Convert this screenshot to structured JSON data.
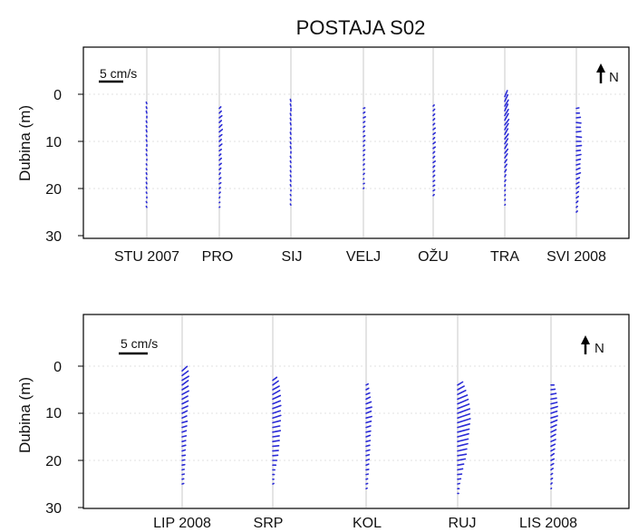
{
  "title": "POSTAJA S02",
  "colors": {
    "arrow": "#2a2ad6",
    "grid": "#c8c8c8",
    "frame": "#000000"
  },
  "north_label": "N",
  "north_icon": "north-arrow-icon",
  "scale_label": "5 cm/s",
  "chart_data": [
    {
      "type": "quiver",
      "ylabel": "Dubina (m)",
      "yticks": [
        "0",
        "10",
        "20",
        "30"
      ],
      "ylim": [
        -9,
        30
      ],
      "y_inverted": true,
      "scale_speed_cms": 5,
      "grid": "vertical lines at months, light",
      "month_labels": [
        "STU 2007",
        "PRO",
        "SIJ",
        "VELJ",
        "OŽU",
        "TRA",
        "SVI 2008"
      ],
      "series": [
        {
          "u": [
            0.1,
            0.1,
            0.1,
            0.0,
            0.1,
            0.1,
            0.1,
            0.1,
            0.1,
            0.0,
            0.1,
            0.1,
            0.0,
            0.1,
            0.1,
            0.1,
            0.1,
            0.1,
            0.1,
            0.1,
            0.0,
            0.1,
            0.1
          ],
          "v": [
            0.3,
            0.3,
            0.4,
            0.3,
            0.3,
            0.3,
            0.4,
            0.3,
            0.3,
            0.3,
            0.3,
            0.3,
            0.2,
            0.2,
            0.2,
            0.3,
            0.3,
            0.3,
            0.3,
            0.2,
            0.2,
            0.2,
            0.2
          ]
        },
        {
          "u": [
            -0.3,
            -0.4,
            -0.5,
            -0.4,
            -0.5,
            -0.6,
            -0.5,
            -0.4,
            -0.5,
            -0.4,
            -0.3,
            -0.4,
            -0.4,
            -0.3,
            -0.2,
            -0.3,
            -0.3,
            -0.2,
            -0.2,
            -0.1,
            -0.1,
            -0.1
          ],
          "v": [
            0.3,
            0.4,
            0.4,
            0.4,
            0.5,
            0.5,
            0.4,
            0.4,
            0.4,
            0.3,
            0.3,
            0.4,
            0.3,
            0.3,
            0.3,
            0.3,
            0.2,
            0.2,
            0.2,
            0.2,
            0.1,
            0.1
          ]
        },
        {
          "u": [
            0.1,
            0.1,
            0.0,
            0.1,
            0.1,
            0.1,
            0.0,
            0.1,
            0.1,
            0.1,
            0.1,
            0.0,
            0.1,
            0.1,
            0.1,
            0.1,
            0.1,
            0.1,
            0.1,
            0.0,
            0.1,
            0.1,
            0.1
          ],
          "v": [
            0.4,
            0.4,
            0.5,
            0.4,
            0.4,
            0.4,
            0.3,
            0.4,
            0.3,
            0.3,
            0.4,
            0.3,
            0.3,
            0.3,
            0.3,
            0.3,
            0.3,
            0.3,
            0.3,
            0.2,
            0.2,
            0.2,
            0.2
          ]
        },
        {
          "u": [
            -0.3,
            -0.3,
            -0.4,
            -0.3,
            -0.3,
            -0.2,
            -0.3,
            -0.3,
            -0.2,
            -0.3,
            -0.2,
            -0.2,
            -0.2,
            -0.2,
            -0.2,
            -0.1,
            -0.2,
            -0.1
          ],
          "v": [
            0.1,
            0.2,
            0.2,
            0.2,
            0.2,
            0.2,
            0.2,
            0.2,
            0.2,
            0.2,
            0.2,
            0.2,
            0.2,
            0.1,
            0.2,
            0.1,
            0.1,
            0.1
          ]
        },
        {
          "u": [
            -0.2,
            -0.3,
            -0.3,
            -0.3,
            -0.3,
            -0.4,
            -0.4,
            -0.3,
            -0.4,
            -0.4,
            -0.3,
            -0.3,
            -0.4,
            -0.3,
            -0.3,
            -0.3,
            -0.3,
            -0.3,
            -0.3,
            -0.2
          ],
          "v": [
            0.2,
            0.3,
            0.3,
            0.3,
            0.3,
            0.3,
            0.3,
            0.3,
            0.3,
            0.3,
            0.3,
            0.3,
            0.3,
            0.3,
            0.3,
            0.3,
            0.2,
            0.2,
            0.2,
            0.2
          ]
        },
        {
          "u": [
            -0.5,
            -0.6,
            -0.7,
            -0.6,
            -0.7,
            -0.7,
            -0.8,
            -0.7,
            -0.6,
            -0.7,
            -0.6,
            -0.5,
            -0.6,
            -0.5,
            -0.4,
            -0.4,
            -0.3,
            -0.2,
            -0.2,
            -0.1,
            -0.1,
            -0.1,
            -0.1,
            -0.1
          ],
          "v": [
            1.2,
            1.3,
            1.2,
            1.3,
            1.2,
            1.3,
            1.1,
            1.2,
            1.1,
            1.0,
            1.0,
            0.9,
            0.8,
            0.8,
            0.6,
            0.6,
            0.5,
            0.4,
            0.3,
            0.3,
            0.2,
            0.2,
            0.2,
            0.1
          ]
        },
        {
          "u": [
            -0.5,
            -0.6,
            -0.8,
            -0.9,
            -0.8,
            -0.9,
            -1.0,
            -0.9,
            -1.0,
            -0.8,
            -0.9,
            -0.8,
            -0.7,
            -0.7,
            -0.8,
            -0.6,
            -0.5,
            -0.5,
            -0.4,
            -0.4,
            -0.3,
            -0.2,
            -0.2
          ],
          "v": [
            0.1,
            0.0,
            0.1,
            -0.1,
            0.0,
            0.1,
            -0.1,
            0.0,
            0.1,
            0.1,
            0.2,
            0.2,
            0.2,
            0.3,
            0.3,
            0.3,
            0.3,
            0.4,
            0.3,
            0.3,
            0.3,
            0.2,
            0.2
          ]
        }
      ]
    },
    {
      "type": "quiver",
      "ylabel": "Dubina (m)",
      "yticks": [
        "0",
        "10",
        "20",
        "30"
      ],
      "ylim": [
        -9,
        30
      ],
      "y_inverted": true,
      "scale_speed_cms": 5,
      "grid": "vertical lines at months, light",
      "month_labels": [
        "LIP 2008",
        "SRP",
        "KOL",
        "RUJ",
        "LIS 2008"
      ],
      "series": [
        {
          "u": [
            -1.0,
            -1.2,
            -1.3,
            -1.2,
            -1.2,
            -1.3,
            -1.1,
            -1.2,
            -1.1,
            -1.0,
            -0.9,
            -1.0,
            -0.9,
            -0.8,
            -0.8,
            -0.7,
            -0.7,
            -0.6,
            -0.6,
            -0.5,
            -0.5,
            -0.4,
            -0.4,
            -0.3,
            -0.3
          ],
          "v": [
            0.9,
            0.9,
            0.8,
            0.9,
            0.7,
            0.7,
            0.6,
            0.6,
            0.5,
            0.5,
            0.4,
            0.3,
            0.3,
            0.3,
            0.2,
            0.2,
            0.2,
            0.2,
            0.1,
            0.1,
            0.1,
            0.1,
            0.1,
            0.1,
            0.1
          ]
        },
        {
          "u": [
            -0.8,
            -1.1,
            -1.3,
            -1.4,
            -1.5,
            -1.5,
            -1.6,
            -1.5,
            -1.6,
            -1.5,
            -1.4,
            -1.5,
            -1.3,
            -1.3,
            -1.2,
            -1.1,
            -1.0,
            -0.8,
            -0.6,
            -0.4,
            -0.3,
            -0.2,
            -0.2
          ],
          "v": [
            0.6,
            0.8,
            0.7,
            0.8,
            0.7,
            0.6,
            0.6,
            0.5,
            0.5,
            0.4,
            0.3,
            0.3,
            0.2,
            0.2,
            0.1,
            0.1,
            0.1,
            0.0,
            0.0,
            0.0,
            0.0,
            0.0,
            0.1
          ]
        },
        {
          "u": [
            -0.4,
            -0.5,
            -0.7,
            -0.8,
            -1.0,
            -1.1,
            -1.0,
            -1.1,
            -1.0,
            -0.9,
            -0.9,
            -0.8,
            -0.8,
            -0.7,
            -0.7,
            -0.6,
            -0.6,
            -0.5,
            -0.5,
            -0.4,
            -0.3,
            -0.3,
            -0.2
          ],
          "v": [
            0.2,
            0.3,
            0.3,
            0.4,
            0.4,
            0.3,
            0.4,
            0.3,
            0.3,
            0.3,
            0.2,
            0.3,
            0.2,
            0.2,
            0.2,
            0.2,
            0.2,
            0.2,
            0.1,
            0.1,
            0.1,
            0.1,
            0.1
          ]
        },
        {
          "u": [
            -1.0,
            -1.3,
            -1.6,
            -1.9,
            -2.1,
            -2.3,
            -2.4,
            -2.4,
            -2.5,
            -2.4,
            -2.3,
            -2.2,
            -2.1,
            -2.0,
            -1.8,
            -1.7,
            -1.5,
            -1.2,
            -1.0,
            -0.8,
            -0.6,
            -0.4,
            -0.3,
            -0.2
          ],
          "v": [
            0.6,
            0.7,
            0.8,
            0.8,
            0.9,
            0.9,
            0.9,
            0.8,
            0.8,
            0.7,
            0.6,
            0.6,
            0.5,
            0.5,
            0.4,
            0.3,
            0.3,
            0.2,
            0.2,
            0.1,
            0.1,
            0.1,
            0.0,
            0.0
          ]
        },
        {
          "u": [
            -0.6,
            -0.8,
            -1.0,
            -1.1,
            -1.2,
            -1.3,
            -1.2,
            -1.3,
            -1.2,
            -1.1,
            -1.0,
            -0.9,
            -0.9,
            -0.8,
            -0.7,
            -0.6,
            -0.6,
            -0.5,
            -0.4,
            -0.3,
            -0.3,
            -0.2,
            -0.1
          ],
          "v": [
            0.0,
            0.1,
            0.2,
            0.2,
            0.3,
            0.4,
            0.4,
            0.4,
            0.5,
            0.5,
            0.5,
            0.5,
            0.4,
            0.4,
            0.4,
            0.4,
            0.3,
            0.3,
            0.3,
            0.2,
            0.2,
            0.2,
            0.1
          ]
        }
      ]
    }
  ]
}
